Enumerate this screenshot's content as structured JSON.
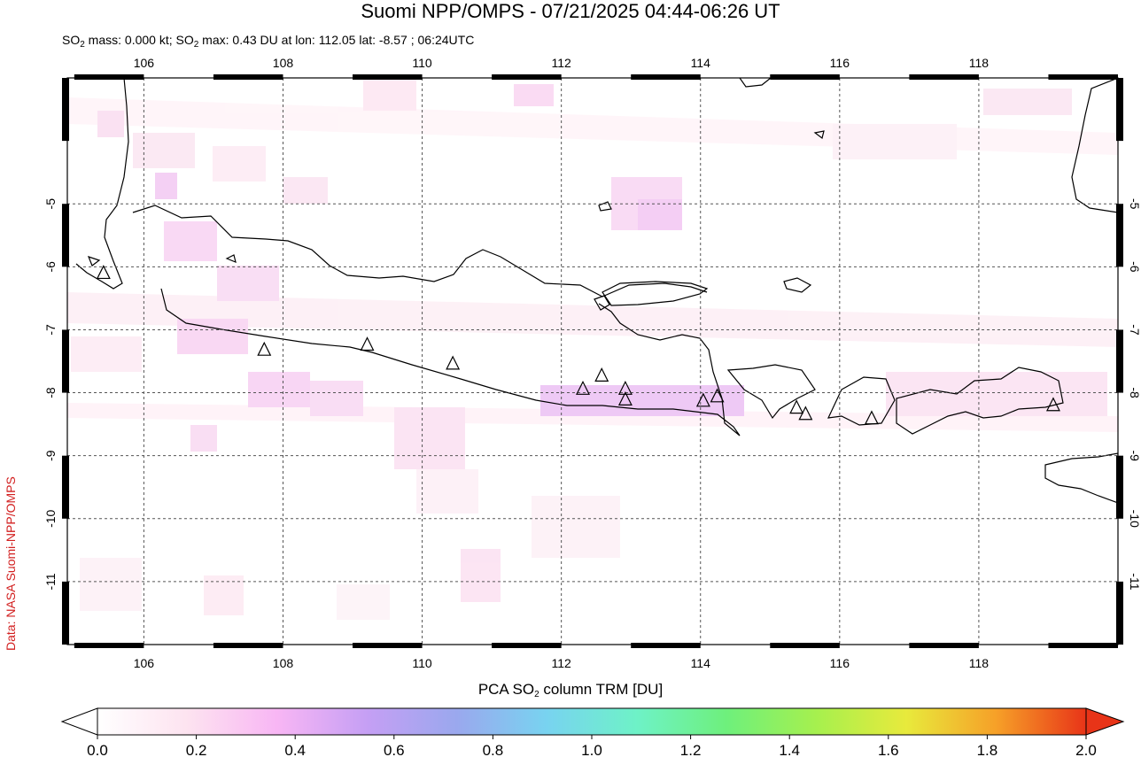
{
  "header": {
    "title": "Suomi NPP/OMPS - 07/21/2025 04:44-06:26 UT",
    "subtitle_pre": "SO",
    "subtitle_sub": "2",
    "subtitle_mid": " mass: 0.000 kt; SO",
    "subtitle_sub2": "2",
    "subtitle_post": " max: 0.43 DU at lon: 112.05 lat: -8.57 ; 06:24UTC"
  },
  "credit": "Data: NASA Suomi-NPP/OMPS",
  "map": {
    "lon_range": [
      104.9,
      120.0
    ],
    "lat_range": [
      -12.0,
      -3.0
    ],
    "lon_ticks": [
      106,
      108,
      110,
      112,
      114,
      116,
      118
    ],
    "lon_tick_labels": [
      "106",
      "108",
      "110",
      "112",
      "114",
      "116",
      "118"
    ],
    "lat_ticks": [
      -5,
      -6,
      -7,
      -8,
      -9,
      -10,
      -11
    ],
    "lat_tick_labels": [
      "-5",
      "-6",
      "-7",
      "-8",
      "-9",
      "-10",
      "-11"
    ],
    "grid": "dashed",
    "volcanoes": [
      {
        "lon": 105.42,
        "lat": -6.1
      },
      {
        "lon": 107.73,
        "lat": -7.32
      },
      {
        "lon": 109.21,
        "lat": -7.24
      },
      {
        "lon": 110.44,
        "lat": -7.54
      },
      {
        "lon": 112.31,
        "lat": -7.94
      },
      {
        "lon": 112.58,
        "lat": -7.73
      },
      {
        "lon": 112.92,
        "lat": -7.94
      },
      {
        "lon": 112.92,
        "lat": -8.11
      },
      {
        "lon": 114.04,
        "lat": -8.13
      },
      {
        "lon": 114.24,
        "lat": -8.06
      },
      {
        "lon": 115.38,
        "lat": -8.24
      },
      {
        "lon": 115.51,
        "lat": -8.34
      },
      {
        "lon": 116.46,
        "lat": -8.41
      },
      {
        "lon": 119.07,
        "lat": -8.2
      }
    ]
  },
  "colorbar": {
    "label_pre": "PCA SO",
    "label_sub": "2",
    "label_post": " column TRM [DU]",
    "ticks": [
      "0.0",
      "0.2",
      "0.4",
      "0.6",
      "0.8",
      "1.0",
      "1.2",
      "1.4",
      "1.6",
      "1.8",
      "2.0"
    ],
    "range": [
      0.0,
      2.0
    ],
    "colors": [
      "#ffffff",
      "#fde3f0",
      "#f8b6f4",
      "#c59ff4",
      "#9aa8ee",
      "#78d3f0",
      "#6ef2c7",
      "#6ef07c",
      "#a6f04e",
      "#e8ea3c",
      "#f6a028",
      "#e83418"
    ]
  }
}
